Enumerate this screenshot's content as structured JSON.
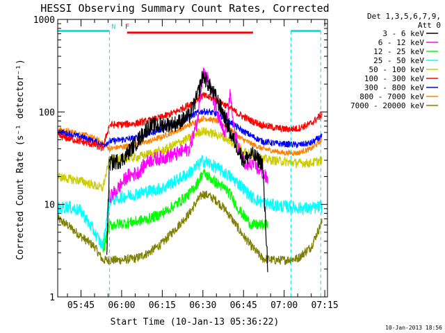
{
  "chart_data": {
    "type": "line",
    "title": "HESSI Observing Summary Count Rates, Corrected",
    "xlabel": "Start Time (10-Jan-13 05:36:22)",
    "ylabel": "Corrected Count Rate (s⁻¹ detector⁻¹)",
    "yscale": "log",
    "ylim": [
      1,
      1000
    ],
    "xlim_minutes": [
      36.4,
      136.0
    ],
    "x_ticks": [
      {
        "label": "05:45",
        "minute": 45
      },
      {
        "label": "06:00",
        "minute": 60
      },
      {
        "label": "06:15",
        "minute": 75
      },
      {
        "label": "06:30",
        "minute": 90
      },
      {
        "label": "06:45",
        "minute": 105
      },
      {
        "label": "07:00",
        "minute": 120
      },
      {
        "label": "07:15",
        "minute": 135
      }
    ],
    "y_ticks": [
      {
        "label": "1",
        "value": 1
      },
      {
        "label": "10",
        "value": 10
      },
      {
        "label": "100",
        "value": 100
      },
      {
        "label": "1000",
        "value": 1000
      }
    ],
    "legend_header": [
      "Det 1,3,5,6,7,9,",
      "Att 0"
    ],
    "legend_position": "top-right",
    "annotations": [
      {
        "text": "N",
        "minute": 55.5,
        "color": "#00e5e5"
      },
      {
        "text": "F",
        "minute": 60.5,
        "color": "#ff0000"
      }
    ],
    "night_bars": [
      {
        "start": 36.4,
        "end": 55.5,
        "level": 750
      },
      {
        "start": 122.5,
        "end": 133.5,
        "level": 750
      }
    ],
    "flare_bar": {
      "start": 62.0,
      "end": 108.5,
      "level": 720
    },
    "series": [
      {
        "name": "3 - 6 keV",
        "color": "#000000",
        "x": [
          36.4,
          50,
          53,
          54.5,
          55.5,
          60,
          65,
          70,
          75,
          80,
          85,
          88,
          90,
          92,
          95,
          98,
          100,
          103,
          105,
          108,
          112,
          114
        ],
        "y": [
          null,
          null,
          null,
          3,
          28,
          30,
          45,
          70,
          72,
          75,
          90,
          150,
          250,
          200,
          140,
          90,
          60,
          40,
          30,
          35,
          28,
          2
        ]
      },
      {
        "name": "6 - 12 keV",
        "color": "#ff00ff",
        "x": [
          55.5,
          58,
          62,
          66,
          70,
          75,
          80,
          85,
          88,
          90,
          92,
          95,
          98,
          100,
          102,
          104,
          106,
          108,
          112,
          114
        ],
        "y": [
          12,
          14,
          20,
          22,
          30,
          32,
          35,
          40,
          80,
          280,
          220,
          100,
          55,
          150,
          55,
          35,
          25,
          28,
          22,
          18
        ]
      },
      {
        "name": "12 - 25 keV",
        "color": "#00ff00",
        "x": [
          50,
          53,
          55.5,
          60,
          65,
          70,
          75,
          80,
          85,
          88,
          90,
          92,
          95,
          98,
          100,
          103,
          106,
          108,
          112,
          114
        ],
        "y": [
          null,
          3.0,
          6,
          6.2,
          6.5,
          7,
          8,
          10,
          13,
          17,
          22,
          20,
          17,
          15,
          13,
          9,
          7,
          6.0,
          6.0,
          6.0
        ]
      },
      {
        "name": "25 - 50 keV",
        "color": "#00ffff",
        "x": [
          36.4,
          40,
          45,
          50,
          53,
          55.5,
          60,
          65,
          70,
          75,
          80,
          85,
          88,
          90,
          92,
          95,
          98,
          100,
          104,
          108,
          112,
          116,
          120,
          125,
          130,
          134
        ],
        "y": [
          9,
          9.5,
          8.5,
          5,
          3.5,
          11,
          12,
          13,
          14,
          15,
          18,
          22,
          26,
          30,
          28,
          25,
          22,
          20,
          16,
          12,
          10.5,
          9.8,
          9.5,
          9.2,
          9.0,
          9.5
        ]
      },
      {
        "name": "50 - 100 keV",
        "color": "#cccc00",
        "x": [
          36.4,
          40,
          45,
          50,
          53,
          55.5,
          60,
          65,
          70,
          75,
          80,
          85,
          88,
          90,
          92,
          95,
          98,
          100,
          104,
          108,
          112,
          116,
          120,
          125,
          130,
          134
        ],
        "y": [
          20,
          19,
          18,
          16,
          15,
          30,
          31,
          32,
          35,
          38,
          45,
          52,
          60,
          62,
          60,
          57,
          53,
          48,
          40,
          34,
          31,
          30,
          29,
          28,
          28,
          30
        ]
      },
      {
        "name": "100 - 300 keV",
        "color": "#ff0000",
        "x": [
          36.4,
          40,
          45,
          50,
          53,
          55.5,
          60,
          65,
          70,
          75,
          80,
          85,
          88,
          90,
          92,
          95,
          98,
          100,
          104,
          108,
          112,
          116,
          120,
          125,
          130,
          134
        ],
        "y": [
          55,
          52,
          48,
          44,
          40,
          72,
          73,
          75,
          80,
          88,
          100,
          120,
          140,
          150,
          145,
          135,
          120,
          110,
          92,
          80,
          72,
          68,
          65,
          66,
          75,
          95
        ]
      },
      {
        "name": "300 - 800 keV",
        "color": "#0000ff",
        "x": [
          36.4,
          40,
          45,
          50,
          53,
          55.5,
          60,
          65,
          70,
          75,
          80,
          85,
          88,
          90,
          92,
          95,
          98,
          100,
          104,
          108,
          112,
          116,
          120,
          125,
          130,
          134
        ],
        "y": [
          62,
          58,
          54,
          48,
          44,
          48,
          50,
          52,
          58,
          66,
          75,
          88,
          98,
          102,
          100,
          95,
          85,
          78,
          64,
          55,
          48,
          46,
          45,
          44,
          46,
          55
        ]
      },
      {
        "name": "800 - 7000 keV",
        "color": "#ff8000",
        "x": [
          36.4,
          40,
          45,
          50,
          53,
          55.5,
          60,
          65,
          70,
          75,
          80,
          85,
          88,
          90,
          92,
          95,
          98,
          100,
          104,
          108,
          112,
          116,
          120,
          125,
          130,
          134
        ],
        "y": [
          65,
          62,
          58,
          52,
          46,
          40,
          42,
          44,
          48,
          54,
          62,
          72,
          80,
          85,
          84,
          80,
          72,
          65,
          52,
          45,
          40,
          38,
          36,
          36,
          40,
          50
        ]
      },
      {
        "name": "7000 - 20000 keV",
        "color": "#808000",
        "x": [
          36.4,
          40,
          45,
          50,
          53,
          55.5,
          60,
          65,
          70,
          75,
          80,
          85,
          88,
          90,
          92,
          95,
          98,
          100,
          104,
          108,
          112,
          116,
          120,
          125,
          130,
          134
        ],
        "y": [
          7,
          6,
          4.5,
          3.5,
          2.5,
          2.5,
          2.5,
          2.6,
          3.0,
          3.8,
          5.5,
          8,
          11,
          13,
          12.5,
          11,
          9,
          7.5,
          5,
          3.5,
          2.6,
          2.5,
          2.5,
          2.6,
          3.5,
          6.5
        ]
      }
    ]
  },
  "footer": {
    "timestamp": "10-Jan-2013 18:56"
  }
}
